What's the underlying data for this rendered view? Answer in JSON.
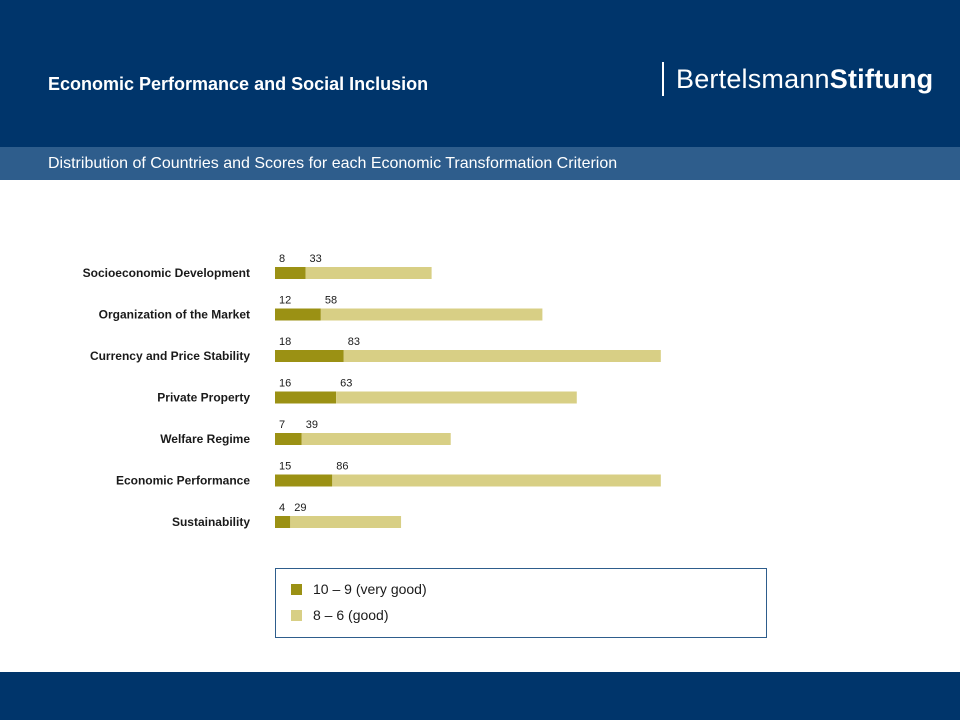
{
  "header": {
    "title": "Economic Performance and Social Inclusion",
    "brand_regular": "Bertelsmann",
    "brand_bold": "Stiftung"
  },
  "subtitle": "Distribution of Countries and Scores for each Economic Transformation Criterion",
  "colors": {
    "header_bg": "#00356b",
    "subheader_bg": "#2e5d8c",
    "very_good": "#9b9114",
    "good": "#d8cf85"
  },
  "chart_data": {
    "type": "bar",
    "orientation": "horizontal",
    "stacked": true,
    "categories": [
      "Socioeconomic Development",
      "Organization of the Market",
      "Currency and Price Stability",
      "Private Property",
      "Welfare Regime",
      "Economic Performance",
      "Sustainability"
    ],
    "series": [
      {
        "name": "10 – 9 (very good)",
        "values": [
          8,
          12,
          18,
          16,
          7,
          15,
          4
        ]
      },
      {
        "name": "8 – 6 (good)",
        "values": [
          33,
          58,
          83,
          63,
          39,
          86,
          29
        ]
      }
    ],
    "xlim": [
      0,
      101
    ],
    "axes_visible": false,
    "grid": false,
    "legend_position": "bottom"
  }
}
